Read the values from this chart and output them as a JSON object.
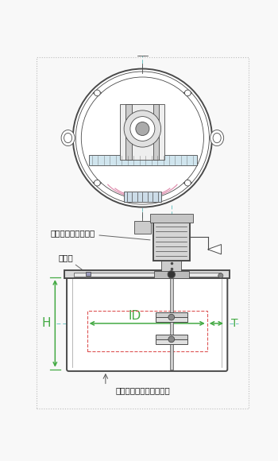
{
  "bg_color": "#f8f8f8",
  "border_color": "#bbbbbb",
  "line_color": "#4a4a4a",
  "light_line": "#999999",
  "cyan_line": "#6ec6c6",
  "red_dashed": "#dd5555",
  "green_arrow": "#44aa44",
  "pink_line": "#e090b0",
  "title_text": "電動モーター攀拌機",
  "label_kaifuhuta": "開閉蓋",
  "label_id": "ID",
  "label_h": "H",
  "label_t": "T",
  "label_heater": "シリコンラバーヒーター"
}
